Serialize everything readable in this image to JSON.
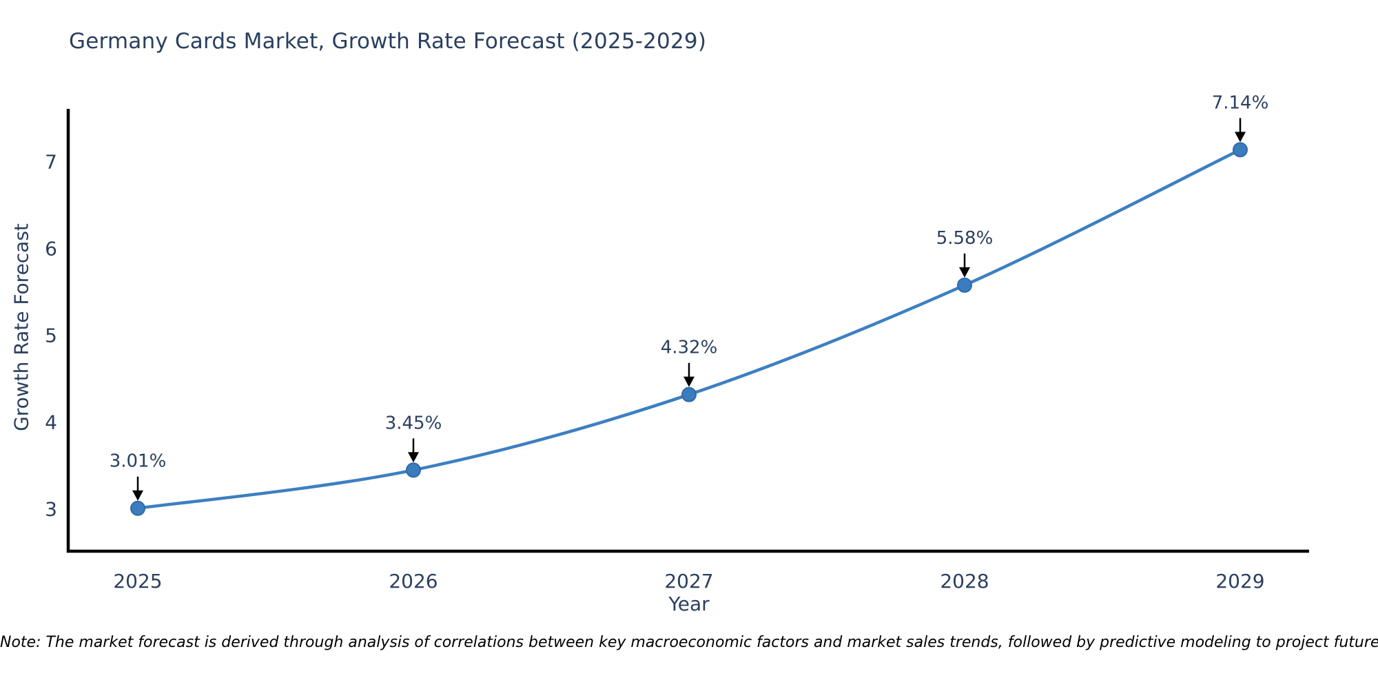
{
  "chart_data": {
    "type": "line",
    "title": "Germany Cards Market, Growth Rate Forecast (2025-2029)",
    "xlabel": "Year",
    "ylabel": "Growth Rate Forecast",
    "categories": [
      "2025",
      "2026",
      "2027",
      "2028",
      "2029"
    ],
    "values": [
      3.01,
      3.45,
      4.32,
      5.58,
      7.14
    ],
    "point_labels": [
      "3.01%",
      "3.45%",
      "4.32%",
      "5.58%",
      "7.14%"
    ],
    "yticks": [
      3,
      4,
      5,
      6,
      7
    ],
    "ylim": [
      2.5,
      7.6
    ],
    "grid": false,
    "legend": false,
    "line_shape": "spline",
    "colors": {
      "line": "#3d7fc1",
      "marker_fill": "#3a7cbe",
      "marker_edge": "#2f6ba6",
      "axis": "#000000",
      "text": "#2a3f5f",
      "annotation_arrow": "#000000"
    },
    "note": "Note: The market forecast is derived through analysis of correlations between key macroeconomic factors and market sales trends, followed by predictive modeling to project future sales."
  }
}
